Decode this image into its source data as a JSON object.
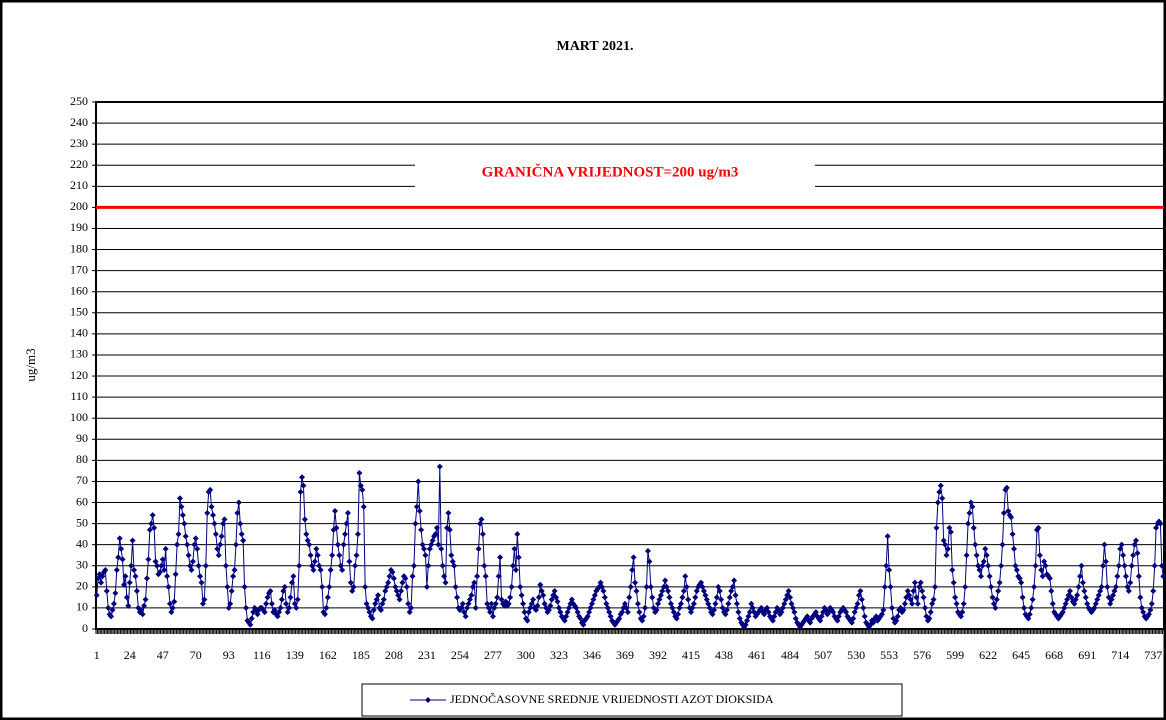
{
  "chart_data": {
    "type": "line",
    "title": "MART 2021.",
    "y_label": "ug/m3",
    "limit": {
      "value": 200,
      "label": "GRANIČNA VRIJEDNOST=200 ug/m3",
      "color": "#ff0000"
    },
    "ylim": [
      0,
      250
    ],
    "yticks": [
      0,
      10,
      20,
      30,
      40,
      50,
      60,
      70,
      80,
      90,
      100,
      110,
      120,
      130,
      140,
      150,
      160,
      170,
      180,
      190,
      200,
      210,
      220,
      230,
      240,
      250
    ],
    "grid": true,
    "legend": "bottom",
    "categories": [
      1,
      null,
      null,
      null,
      null,
      null,
      null,
      null,
      null,
      null,
      null,
      null,
      null,
      null,
      null,
      null,
      null,
      null,
      null,
      null,
      null,
      null,
      null,
      24,
      null,
      null,
      null,
      null,
      null,
      null,
      null,
      null,
      null,
      null,
      null,
      null,
      null,
      null,
      null,
      null,
      null,
      null,
      null,
      null,
      null,
      null,
      47,
      null,
      null,
      null,
      null,
      null,
      null,
      null,
      null,
      null,
      null,
      null,
      null,
      null,
      null,
      null,
      null,
      null,
      null,
      null,
      null,
      null,
      null,
      70,
      null,
      null,
      null,
      null,
      null,
      null,
      null,
      null,
      null,
      null,
      null,
      null,
      null,
      null,
      null,
      null,
      null,
      null,
      null,
      null,
      null,
      null,
      93,
      null,
      null,
      null,
      null,
      null,
      null,
      null,
      null,
      null,
      null,
      null,
      null,
      null,
      null,
      null,
      null,
      null,
      null,
      null,
      null,
      null,
      null,
      116,
      null,
      null,
      null,
      null,
      null,
      null,
      null,
      null,
      null,
      null,
      null,
      null,
      null,
      null,
      null,
      null,
      null,
      null,
      null,
      null,
      null,
      null,
      139,
      null,
      null,
      null,
      null,
      null,
      null,
      null,
      null,
      null,
      null,
      null,
      null,
      null,
      null,
      null,
      null,
      null,
      null,
      null,
      null,
      null,
      null,
      162,
      null,
      null,
      null,
      null,
      null,
      null,
      null,
      null,
      null,
      null,
      null,
      null,
      null,
      null,
      null,
      null,
      null,
      null,
      null,
      null,
      null,
      null,
      185,
      null,
      null,
      null,
      null,
      null,
      null,
      null,
      null,
      null,
      null,
      null,
      null,
      null,
      null,
      null,
      null,
      null,
      null,
      null,
      null,
      null,
      null,
      208,
      null,
      null,
      null,
      null,
      null,
      null,
      null,
      null,
      null,
      null,
      null,
      null,
      null,
      null,
      null,
      null,
      null,
      null,
      null,
      null,
      null,
      null,
      231,
      null,
      null,
      null,
      null,
      null,
      null,
      null,
      null,
      null,
      null,
      null,
      null,
      null,
      null,
      null,
      null,
      null,
      null,
      null,
      null,
      null,
      null,
      254,
      null,
      null,
      null,
      null,
      null,
      null,
      null,
      null,
      null,
      null,
      null,
      null,
      null,
      null,
      null,
      null,
      null,
      null,
      null,
      null,
      null,
      null,
      277,
      null,
      null,
      null,
      null,
      null,
      null,
      null,
      null,
      null,
      null,
      null,
      null,
      null,
      null,
      null,
      null,
      null,
      null,
      null,
      null,
      null,
      null,
      300,
      null,
      null,
      null,
      null,
      null,
      null,
      null,
      null,
      null,
      null,
      null,
      null,
      null,
      null,
      null,
      null,
      null,
      null,
      null,
      null,
      null,
      null,
      323,
      null,
      null,
      null,
      null,
      null,
      null,
      null,
      null,
      null,
      null,
      null,
      null,
      null,
      null,
      null,
      null,
      null,
      null,
      null,
      null,
      null,
      null,
      346,
      null,
      null,
      null,
      null,
      null,
      null,
      null,
      null,
      null,
      null,
      null,
      null,
      null,
      null,
      null,
      null,
      null,
      null,
      null,
      null,
      null,
      null,
      369,
      null,
      null,
      null,
      null,
      null,
      null,
      null,
      null,
      null,
      null,
      null,
      null,
      null,
      null,
      null,
      null,
      null,
      null,
      null,
      null,
      null,
      null,
      392,
      null,
      null,
      null,
      null,
      null,
      null,
      null,
      null,
      null,
      null,
      null,
      null,
      null,
      null,
      null,
      null,
      null,
      null,
      null,
      null,
      null,
      null,
      415,
      null,
      null,
      null,
      null,
      null,
      null,
      null,
      null,
      null,
      null,
      null,
      null,
      null,
      null,
      null,
      null,
      null,
      null,
      null,
      null,
      null,
      null,
      438,
      null,
      null,
      null,
      null,
      null,
      null,
      null,
      null,
      null,
      null,
      null,
      null,
      null,
      null,
      null,
      null,
      null,
      null,
      null,
      null,
      null,
      null,
      461,
      null,
      null,
      null,
      null,
      null,
      null,
      null,
      null,
      null,
      null,
      null,
      null,
      null,
      null,
      null,
      null,
      null,
      null,
      null,
      null,
      null,
      null,
      484,
      null,
      null,
      null,
      null,
      null,
      null,
      null,
      null,
      null,
      null,
      null,
      null,
      null,
      null,
      null,
      null,
      null,
      null,
      null,
      null,
      null,
      null,
      507,
      null,
      null,
      null,
      null,
      null,
      null,
      null,
      null,
      null,
      null,
      null,
      null,
      null,
      null,
      null,
      null,
      null,
      null,
      null,
      null,
      null,
      null,
      530,
      null,
      null,
      null,
      null,
      null,
      null,
      null,
      null,
      null,
      null,
      null,
      null,
      null,
      null,
      null,
      null,
      null,
      null,
      null,
      null,
      null,
      null,
      553,
      null,
      null,
      null,
      null,
      null,
      null,
      null,
      null,
      null,
      null,
      null,
      null,
      null,
      null,
      null,
      null,
      null,
      null,
      null,
      null,
      null,
      null,
      576,
      null,
      null,
      null,
      null,
      null,
      null,
      null,
      null,
      null,
      null,
      null,
      null,
      null,
      null,
      null,
      null,
      null,
      null,
      null,
      null,
      null,
      null,
      599,
      null,
      null,
      null,
      null,
      null,
      null,
      null,
      null,
      null,
      null,
      null,
      null,
      null,
      null,
      null,
      null,
      null,
      null,
      null,
      null,
      null,
      null,
      622,
      null,
      null,
      null,
      null,
      null,
      null,
      null,
      null,
      null,
      null,
      null,
      null,
      null,
      null,
      null,
      null,
      null,
      null,
      null,
      null,
      null,
      null,
      645,
      null,
      null,
      null,
      null,
      null,
      null,
      null,
      null,
      null,
      null,
      null,
      null,
      null,
      null,
      null,
      null,
      null,
      null,
      null,
      null,
      null,
      null,
      668,
      null,
      null,
      null,
      null,
      null,
      null,
      null,
      null,
      null,
      null,
      null,
      null,
      null,
      null,
      null,
      null,
      null,
      null,
      null,
      null,
      null,
      null,
      691,
      null,
      null,
      null,
      null,
      null,
      null,
      null,
      null,
      null,
      null,
      null,
      null,
      null,
      null,
      null,
      null,
      null,
      null,
      null,
      null,
      null,
      null,
      714,
      null,
      null,
      null,
      null,
      null,
      null,
      null,
      null,
      null,
      null,
      null,
      null,
      null,
      null,
      null,
      null,
      null,
      null,
      null,
      null,
      null,
      null,
      737,
      null,
      null,
      null,
      null,
      null,
      null,
      null
    ],
    "series": [
      {
        "name": "JEDNOČASOVNE SREDNJE VRIJEDNOSTI AZOT DIOKSIDA",
        "color": "#000080",
        "values": [
          16,
          24,
          26,
          22,
          25,
          27,
          28,
          18,
          10,
          7,
          6,
          9,
          12,
          17,
          28,
          34,
          43,
          38,
          33,
          21,
          25,
          15,
          11,
          22,
          30,
          42,
          28,
          25,
          18,
          10,
          8,
          9,
          7,
          11,
          14,
          24,
          33,
          47,
          50,
          54,
          48,
          32,
          30,
          26,
          27,
          30,
          33,
          28,
          38,
          25,
          20,
          12,
          8,
          10,
          13,
          26,
          40,
          45,
          62,
          58,
          54,
          50,
          44,
          40,
          35,
          30,
          28,
          32,
          40,
          43,
          38,
          30,
          25,
          22,
          12,
          14,
          30,
          55,
          65,
          66,
          58,
          54,
          50,
          45,
          38,
          35,
          40,
          44,
          50,
          52,
          30,
          20,
          10,
          12,
          18,
          25,
          28,
          40,
          55,
          60,
          50,
          45,
          42,
          20,
          10,
          4,
          3,
          2,
          5,
          8,
          10,
          9,
          7,
          9,
          10,
          10,
          9,
          8,
          12,
          15,
          17,
          18,
          12,
          8,
          9,
          7,
          6,
          8,
          10,
          14,
          18,
          20,
          12,
          8,
          10,
          15,
          22,
          25,
          12,
          10,
          14,
          30,
          65,
          72,
          68,
          52,
          45,
          42,
          40,
          35,
          30,
          28,
          32,
          38,
          35,
          30,
          28,
          20,
          8,
          7,
          10,
          15,
          20,
          28,
          35,
          47,
          56,
          48,
          40,
          35,
          30,
          28,
          40,
          45,
          50,
          55,
          32,
          22,
          18,
          20,
          30,
          35,
          45,
          74,
          68,
          66,
          58,
          20,
          12,
          10,
          8,
          6,
          5,
          9,
          12,
          14,
          16,
          10,
          9,
          12,
          14,
          18,
          20,
          22,
          25,
          28,
          27,
          24,
          20,
          18,
          16,
          14,
          18,
          22,
          25,
          24,
          20,
          12,
          8,
          10,
          25,
          30,
          50,
          58,
          70,
          56,
          47,
          40,
          38,
          35,
          20,
          30,
          38,
          40,
          42,
          44,
          45,
          48,
          40,
          77,
          38,
          30,
          25,
          22,
          48,
          55,
          47,
          35,
          32,
          30,
          20,
          15,
          10,
          9,
          10,
          12,
          8,
          6,
          10,
          12,
          14,
          16,
          20,
          22,
          10,
          25,
          38,
          50,
          52,
          45,
          30,
          25,
          12,
          10,
          8,
          12,
          6,
          10,
          12,
          15,
          25,
          34,
          14,
          12,
          11,
          13,
          11,
          12,
          15,
          20,
          30,
          38,
          28,
          45,
          34,
          20,
          16,
          12,
          8,
          5,
          4,
          8,
          10,
          12,
          14,
          10,
          9,
          11,
          15,
          21,
          18,
          16,
          12,
          10,
          8,
          9,
          11,
          14,
          16,
          18,
          15,
          13,
          10,
          8,
          6,
          5,
          4,
          6,
          8,
          10,
          12,
          14,
          12,
          11,
          10,
          8,
          6,
          5,
          3,
          2,
          4,
          5,
          6,
          8,
          10,
          12,
          14,
          16,
          18,
          19,
          20,
          22,
          20,
          18,
          15,
          12,
          10,
          8,
          6,
          4,
          3,
          2,
          3,
          4,
          5,
          7,
          8,
          10,
          12,
          10,
          8,
          15,
          20,
          28,
          34,
          22,
          18,
          12,
          8,
          5,
          4,
          6,
          10,
          20,
          37,
          32,
          20,
          15,
          10,
          8,
          9,
          12,
          14,
          16,
          18,
          20,
          23,
          20,
          18,
          15,
          12,
          10,
          8,
          6,
          5,
          7,
          10,
          12,
          15,
          18,
          25,
          20,
          14,
          10,
          8,
          10,
          12,
          15,
          18,
          20,
          21,
          22,
          20,
          18,
          16,
          14,
          12,
          10,
          8,
          7,
          9,
          12,
          15,
          20,
          18,
          14,
          10,
          8,
          7,
          9,
          12,
          15,
          18,
          20,
          23,
          16,
          12,
          8,
          5,
          3,
          2,
          1,
          2,
          4,
          6,
          8,
          12,
          10,
          8,
          6,
          7,
          8,
          9,
          10,
          8,
          7,
          9,
          10,
          8,
          6,
          5,
          4,
          6,
          8,
          10,
          9,
          7,
          8,
          10,
          12,
          14,
          16,
          18,
          15,
          12,
          10,
          8,
          5,
          3,
          2,
          1,
          2,
          3,
          4,
          5,
          6,
          4,
          3,
          5,
          6,
          7,
          8,
          6,
          5,
          4,
          6,
          8,
          10,
          9,
          7,
          8,
          10,
          9,
          8,
          6,
          5,
          4,
          6,
          8,
          9,
          10,
          9,
          8,
          6,
          5,
          4,
          3,
          5,
          8,
          10,
          12,
          16,
          18,
          14,
          10,
          6,
          3,
          2,
          1,
          2,
          4,
          3,
          5,
          6,
          4,
          5,
          6,
          7,
          9,
          20,
          30,
          44,
          28,
          20,
          10,
          5,
          3,
          4,
          6,
          9,
          10,
          8,
          9,
          12,
          15,
          18,
          16,
          14,
          12,
          18,
          22,
          15,
          12,
          20,
          22,
          18,
          15,
          10,
          6,
          4,
          5,
          8,
          12,
          14,
          20,
          48,
          60,
          65,
          68,
          62,
          42,
          40,
          35,
          38,
          48,
          46,
          28,
          22,
          15,
          12,
          8,
          7,
          6,
          8,
          12,
          20,
          35,
          50,
          55,
          60,
          58,
          48,
          40,
          35,
          30,
          28,
          25,
          30,
          32,
          38,
          35,
          30,
          25,
          20,
          15,
          12,
          10,
          14,
          18,
          22,
          30,
          40,
          55,
          66,
          67,
          56,
          54,
          53,
          45,
          38,
          30,
          28,
          25,
          24,
          22,
          15,
          10,
          7,
          6,
          5,
          7,
          10,
          14,
          20,
          30,
          47,
          48,
          35,
          28,
          25,
          32,
          30,
          26,
          25,
          24,
          18,
          12,
          8,
          7,
          6,
          5,
          6,
          7,
          8,
          10,
          12,
          14,
          16,
          18,
          15,
          13,
          12,
          14,
          16,
          20,
          25,
          30,
          22,
          18,
          15,
          12,
          10,
          9,
          8,
          9,
          10,
          12,
          14,
          16,
          18,
          20,
          30,
          40,
          32,
          20,
          15,
          12,
          14,
          16,
          18,
          20,
          25,
          30,
          38,
          40,
          35,
          30,
          25,
          20,
          18,
          22,
          30,
          35,
          40,
          42,
          36,
          25,
          15,
          10,
          8,
          6,
          5,
          6,
          7,
          9,
          12,
          18,
          30,
          48,
          50,
          51,
          50,
          30,
          25
        ]
      }
    ]
  }
}
